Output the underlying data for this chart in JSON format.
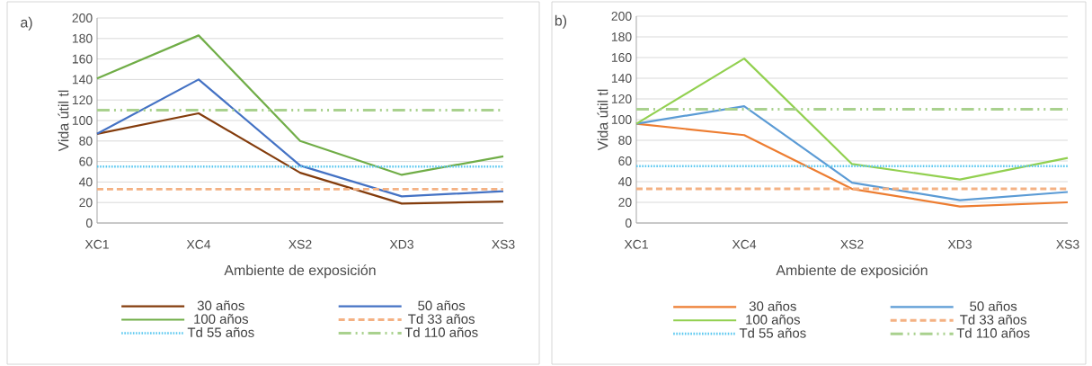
{
  "chart_data": [
    {
      "type": "line",
      "title": "a)",
      "xlabel": "Ambiente de exposición",
      "ylabel": "Vida útil tl",
      "categories": [
        "XC1",
        "XC4",
        "XS2",
        "XD3",
        "XS3"
      ],
      "ylim": [
        0,
        200
      ],
      "yticks": [
        0,
        20,
        40,
        60,
        80,
        100,
        120,
        140,
        160,
        180,
        200
      ],
      "grid": "y",
      "legend": "bottom",
      "series": [
        {
          "name": "30 años",
          "color": "#843c0c",
          "line_style": "solid",
          "values": [
            87,
            107,
            49,
            19,
            21
          ]
        },
        {
          "name": "50 años",
          "color": "#4472c4",
          "line_style": "solid",
          "values": [
            87,
            140,
            56,
            26,
            31
          ]
        },
        {
          "name": "100 años",
          "color": "#70ad47",
          "line_style": "solid",
          "values": [
            141,
            183,
            80,
            47,
            65
          ]
        },
        {
          "name": "Td 33 años",
          "color": "#f4b183",
          "line_style": "dashed",
          "values": [
            33,
            33,
            33,
            33,
            33
          ]
        },
        {
          "name": "Td 55 años",
          "color": "#5bc8f0",
          "line_style": "dotted",
          "values": [
            55,
            55,
            55,
            55,
            55
          ]
        },
        {
          "name": "Td 110 años",
          "color": "#a9d18e",
          "line_style": "dashdot",
          "values": [
            110,
            110,
            110,
            110,
            110
          ]
        }
      ]
    },
    {
      "type": "line",
      "title": "b)",
      "xlabel": "Ambiente de exposición",
      "ylabel": "Vida útil tl",
      "categories": [
        "XC1",
        "XC4",
        "XS2",
        "XD3",
        "XS3"
      ],
      "ylim": [
        0,
        200
      ],
      "yticks": [
        0,
        20,
        40,
        60,
        80,
        100,
        120,
        140,
        160,
        180,
        200
      ],
      "grid": "y",
      "legend": "bottom",
      "series": [
        {
          "name": "30 años",
          "color": "#ed7d31",
          "line_style": "solid",
          "values": [
            96,
            85,
            33,
            16,
            20
          ]
        },
        {
          "name": "50 años",
          "color": "#5b9bd5",
          "line_style": "solid",
          "values": [
            96,
            113,
            39,
            22,
            30
          ]
        },
        {
          "name": "100 años",
          "color": "#92d050",
          "line_style": "solid",
          "values": [
            96,
            159,
            57,
            42,
            63
          ]
        },
        {
          "name": "Td 33 años",
          "color": "#f4b183",
          "line_style": "dashed",
          "values": [
            33,
            33,
            33,
            33,
            33
          ]
        },
        {
          "name": "Td 55 años",
          "color": "#5bc8f0",
          "line_style": "dotted",
          "values": [
            55,
            55,
            55,
            55,
            55
          ]
        },
        {
          "name": "Td 110 años",
          "color": "#a9d18e",
          "line_style": "dashdot",
          "values": [
            110,
            110,
            110,
            110,
            110
          ]
        }
      ]
    }
  ]
}
